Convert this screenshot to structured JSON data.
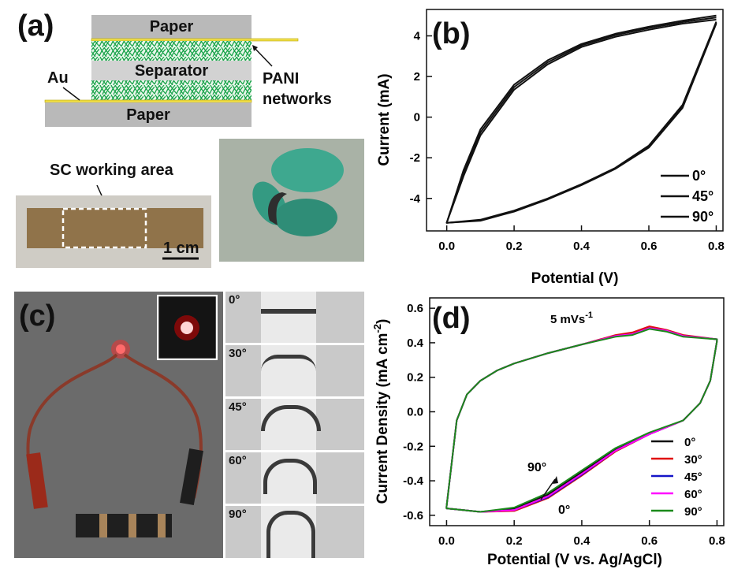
{
  "panel_a": {
    "label": "(a)",
    "layers": {
      "paper_top": "Paper",
      "separator": "Separator",
      "paper_bottom": "Paper",
      "au": "Au",
      "pani_line1": "PANI",
      "pani_line2": "networks"
    },
    "working_area_label": "SC working area",
    "scale_bar": "1 cm"
  },
  "panel_b": {
    "label": "(b)",
    "colors": {
      "line": "#111111"
    },
    "chart_data": {
      "type": "line",
      "xlabel": "Potential (V)",
      "ylabel": "Current (mA)",
      "xlim": [
        -0.06,
        0.82
      ],
      "ylim": [
        -5.6,
        5.3
      ],
      "xticks": [
        "0.0",
        "0.2",
        "0.4",
        "0.6",
        "0.8"
      ],
      "xtick_values": [
        0.0,
        0.2,
        0.4,
        0.6,
        0.8
      ],
      "yticks": [
        "4",
        "2",
        "0",
        "-2",
        "-4"
      ],
      "ytick_values": [
        4,
        2,
        0,
        -2,
        -4
      ],
      "legend_position": "bottom-right",
      "series": [
        {
          "name": "0°",
          "x": [
            0.8,
            0.7,
            0.6,
            0.5,
            0.4,
            0.3,
            0.2,
            0.1,
            0.05,
            0.0,
            0.1,
            0.2,
            0.3,
            0.4,
            0.5,
            0.6,
            0.7,
            0.8
          ],
          "y": [
            5.0,
            4.75,
            4.45,
            4.1,
            3.6,
            2.8,
            1.6,
            -0.6,
            -2.6,
            -5.2,
            -5.05,
            -4.6,
            -4.0,
            -3.3,
            -2.5,
            -1.4,
            0.6,
            4.7
          ]
        },
        {
          "name": "45°",
          "x": [
            0.8,
            0.7,
            0.6,
            0.5,
            0.4,
            0.3,
            0.2,
            0.1,
            0.05,
            0.0,
            0.1,
            0.2,
            0.3,
            0.4,
            0.5,
            0.6,
            0.7,
            0.8
          ],
          "y": [
            4.8,
            4.6,
            4.3,
            3.95,
            3.45,
            2.6,
            1.35,
            -0.9,
            -2.9,
            -5.2,
            -5.1,
            -4.65,
            -4.05,
            -3.35,
            -2.55,
            -1.5,
            0.45,
            4.6
          ]
        },
        {
          "name": "90°",
          "x": [
            0.8,
            0.7,
            0.6,
            0.5,
            0.4,
            0.3,
            0.2,
            0.1,
            0.05,
            0.0,
            0.1,
            0.2,
            0.3,
            0.4,
            0.5,
            0.6,
            0.7,
            0.8
          ],
          "y": [
            4.9,
            4.68,
            4.38,
            4.03,
            3.53,
            2.7,
            1.48,
            -0.75,
            -2.75,
            -5.2,
            -5.08,
            -4.62,
            -4.02,
            -3.32,
            -2.52,
            -1.45,
            0.52,
            4.65
          ]
        }
      ]
    }
  },
  "panel_c": {
    "label": "(c)",
    "angles": [
      "0",
      "30",
      "45",
      "60",
      "90"
    ],
    "degree": "°"
  },
  "panel_d": {
    "label": "(d)",
    "scan_rate_main": "5 mVs",
    "scan_rate_sup": "-1",
    "annot_90": "90°",
    "annot_0": "0°",
    "colors": {
      "s0": "#111111",
      "s30": "#e01010",
      "s45": "#1414c8",
      "s60": "#ff00ff",
      "s90": "#1a8a1a"
    },
    "chart_data": {
      "type": "line",
      "xlabel": "Potential (V vs. Ag/AgCl)",
      "ylabel_main": "Current Density (mA cm",
      "ylabel_sup": "-2",
      "ylabel_end": ")",
      "xlim": [
        -0.05,
        0.82
      ],
      "ylim": [
        -0.66,
        0.66
      ],
      "xticks": [
        "0.0",
        "0.2",
        "0.4",
        "0.6",
        "0.8"
      ],
      "xtick_values": [
        0.0,
        0.2,
        0.4,
        0.6,
        0.8
      ],
      "yticks": [
        "0.6",
        "0.4",
        "0.2",
        "0.0",
        "-0.2",
        "-0.4",
        "-0.6"
      ],
      "ytick_values": [
        0.6,
        0.4,
        0.2,
        0.0,
        -0.2,
        -0.4,
        -0.6
      ],
      "legend_position": "bottom-right",
      "series": [
        {
          "name": "0°",
          "x": [
            0.0,
            0.03,
            0.06,
            0.1,
            0.15,
            0.2,
            0.3,
            0.4,
            0.5,
            0.55,
            0.6,
            0.65,
            0.7,
            0.8,
            0.8,
            0.78,
            0.75,
            0.7,
            0.6,
            0.5,
            0.4,
            0.3,
            0.2,
            0.1,
            0.05,
            0.0,
            0.0
          ],
          "y": [
            -0.55,
            -0.05,
            0.1,
            0.18,
            0.24,
            0.28,
            0.34,
            0.39,
            0.44,
            0.45,
            0.49,
            0.47,
            0.44,
            0.42,
            0.41,
            0.18,
            0.05,
            -0.05,
            -0.13,
            -0.22,
            -0.35,
            -0.48,
            -0.56,
            -0.58,
            -0.57,
            -0.56,
            -0.55
          ]
        },
        {
          "name": "30°",
          "x": [
            0.0,
            0.03,
            0.06,
            0.1,
            0.15,
            0.2,
            0.3,
            0.4,
            0.5,
            0.55,
            0.6,
            0.65,
            0.7,
            0.8,
            0.8,
            0.78,
            0.75,
            0.7,
            0.6,
            0.5,
            0.4,
            0.3,
            0.2,
            0.1,
            0.05,
            0.0,
            0.0
          ],
          "y": [
            -0.55,
            -0.05,
            0.1,
            0.18,
            0.24,
            0.28,
            0.34,
            0.39,
            0.445,
            0.46,
            0.495,
            0.475,
            0.445,
            0.42,
            0.41,
            0.18,
            0.05,
            -0.05,
            -0.13,
            -0.23,
            -0.37,
            -0.5,
            -0.575,
            -0.58,
            -0.57,
            -0.56,
            -0.55
          ]
        },
        {
          "name": "45°",
          "x": [
            0.0,
            0.03,
            0.06,
            0.1,
            0.15,
            0.2,
            0.3,
            0.4,
            0.5,
            0.55,
            0.6,
            0.65,
            0.7,
            0.8,
            0.8,
            0.78,
            0.75,
            0.7,
            0.6,
            0.5,
            0.4,
            0.3,
            0.2,
            0.1,
            0.05,
            0.0,
            0.0
          ],
          "y": [
            -0.55,
            -0.05,
            0.1,
            0.18,
            0.24,
            0.28,
            0.34,
            0.39,
            0.44,
            0.45,
            0.485,
            0.47,
            0.44,
            0.42,
            0.41,
            0.18,
            0.05,
            -0.05,
            -0.13,
            -0.225,
            -0.365,
            -0.495,
            -0.57,
            -0.58,
            -0.57,
            -0.56,
            -0.55
          ]
        },
        {
          "name": "60°",
          "x": [
            0.0,
            0.03,
            0.06,
            0.1,
            0.15,
            0.2,
            0.3,
            0.4,
            0.5,
            0.55,
            0.6,
            0.65,
            0.7,
            0.8,
            0.8,
            0.78,
            0.75,
            0.7,
            0.6,
            0.5,
            0.4,
            0.3,
            0.2,
            0.1,
            0.05,
            0.0,
            0.0
          ],
          "y": [
            -0.55,
            -0.05,
            0.1,
            0.18,
            0.24,
            0.28,
            0.34,
            0.39,
            0.44,
            0.45,
            0.485,
            0.47,
            0.44,
            0.42,
            0.41,
            0.18,
            0.05,
            -0.05,
            -0.13,
            -0.225,
            -0.36,
            -0.49,
            -0.57,
            -0.58,
            -0.57,
            -0.56,
            -0.55
          ]
        },
        {
          "name": "90°",
          "x": [
            0.0,
            0.03,
            0.06,
            0.1,
            0.15,
            0.2,
            0.3,
            0.4,
            0.5,
            0.55,
            0.6,
            0.65,
            0.7,
            0.8,
            0.8,
            0.78,
            0.75,
            0.7,
            0.6,
            0.5,
            0.4,
            0.3,
            0.2,
            0.1,
            0.05,
            0.0,
            0.0
          ],
          "y": [
            -0.55,
            -0.05,
            0.1,
            0.18,
            0.24,
            0.28,
            0.34,
            0.39,
            0.435,
            0.445,
            0.48,
            0.465,
            0.435,
            0.42,
            0.41,
            0.18,
            0.05,
            -0.05,
            -0.12,
            -0.21,
            -0.34,
            -0.47,
            -0.555,
            -0.58,
            -0.57,
            -0.56,
            -0.55
          ]
        }
      ]
    }
  }
}
